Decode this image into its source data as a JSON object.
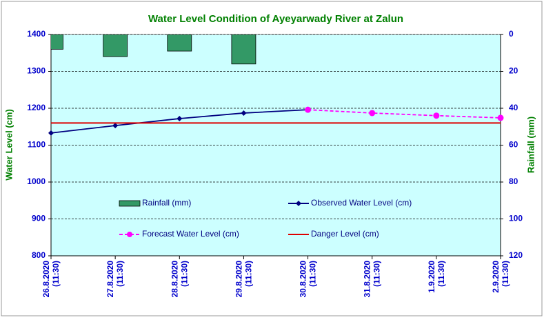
{
  "chart_data": {
    "type": "combo",
    "title": "Water Level Condition of Ayeyarwady River at Zalun",
    "y_label": "Water Level (cm)",
    "y2_label": "Rainfall (mm)",
    "categories": [
      "26.8.2020\n(11:30)",
      "27.8.2020\n(11:30)",
      "28.8.2020\n(11:30)",
      "29.8.2020\n(11:30)",
      "30.8.2020\n(11:30)",
      "31.8.2020\n(11:30)",
      "1.9.2020\n(11:30)",
      "2.9.2020\n(11:30)"
    ],
    "ylim": [
      800,
      1400
    ],
    "yticks": [
      800,
      900,
      1000,
      1100,
      1200,
      1300,
      1400
    ],
    "y2lim": [
      0,
      120
    ],
    "y2ticks": [
      0,
      20,
      40,
      60,
      80,
      100,
      120
    ],
    "y2_reversed": true,
    "grid": true,
    "series": [
      {
        "name": "Rainfall (mm)",
        "kind": "bar",
        "axis": "y2",
        "color": "#339966",
        "values": [
          8,
          12,
          9,
          16,
          null,
          null,
          null,
          null
        ]
      },
      {
        "name": "Observed Water Level (cm)",
        "kind": "line",
        "color": "#000080",
        "values": [
          1133,
          1153,
          1172,
          1187,
          1196,
          null,
          null,
          null
        ]
      },
      {
        "name": "Forecast Water Level (cm)",
        "kind": "dashed",
        "color": "#ff00ff",
        "values": [
          null,
          null,
          null,
          null,
          1196,
          1187,
          1180,
          1174
        ]
      },
      {
        "name": "Danger Level (cm)",
        "kind": "level",
        "color": "#dd0000",
        "values": [
          1160,
          1160,
          1160,
          1160,
          1160,
          1160,
          1160,
          1160
        ]
      }
    ]
  }
}
